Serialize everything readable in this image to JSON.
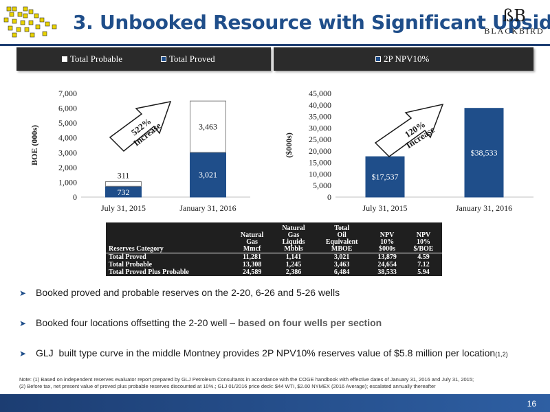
{
  "header": {
    "title": "3. Unbooked Resource with Significant Upside",
    "brand_mark": "ßB",
    "brand_name": "BLACKBIRD"
  },
  "legend_left": [
    "Total Probable",
    "Total Proved"
  ],
  "legend_right": [
    "2P NPV10%"
  ],
  "chart_data": [
    {
      "type": "bar",
      "stacked": true,
      "title": "",
      "ylabel": "BOE (000s)",
      "xlabel": "",
      "categories": [
        "July 31, 2015",
        "January 31, 2016"
      ],
      "series": [
        {
          "name": "Total Proved",
          "values": [
            732,
            3021
          ],
          "color": "#1f4e8a"
        },
        {
          "name": "Total Probable",
          "values": [
            311,
            3463
          ],
          "color": "#ffffff"
        }
      ],
      "data_labels": [
        {
          "proved": "732",
          "probable": "311"
        },
        {
          "proved": "3,021",
          "probable": "3,463"
        }
      ],
      "ylim": [
        0,
        7000
      ],
      "yticks": [
        "0",
        "1,000",
        "2,000",
        "3,000",
        "4,000",
        "5,000",
        "6,000",
        "7,000"
      ],
      "ytick_values": [
        0,
        1000,
        2000,
        3000,
        4000,
        5000,
        6000,
        7000
      ],
      "annotation": [
        "522%",
        "Increase"
      ]
    },
    {
      "type": "bar",
      "title": "",
      "ylabel": "($000s)",
      "xlabel": "",
      "categories": [
        "July 31, 2015",
        "January 31, 2016"
      ],
      "series": [
        {
          "name": "2P NPV10%",
          "values": [
            17537,
            38533
          ],
          "color": "#1f4e8a"
        }
      ],
      "data_labels": [
        "$17,537",
        "$38,533"
      ],
      "ylim": [
        0,
        45000
      ],
      "yticks": [
        "0",
        "5,000",
        "10,000",
        "15,000",
        "20,000",
        "25,000",
        "30,000",
        "35,000",
        "40,000",
        "45,000"
      ],
      "ytick_values": [
        0,
        5000,
        10000,
        15000,
        20000,
        25000,
        30000,
        35000,
        40000,
        45000
      ],
      "annotation": [
        "120%",
        "Increase"
      ]
    }
  ],
  "table": {
    "headers": [
      [
        "Reserves Category"
      ],
      [
        "Natural",
        "Gas",
        "Mmcf"
      ],
      [
        "Natural",
        "Gas",
        "Liquids",
        "Mbbls"
      ],
      [
        "Total",
        "Oil",
        "Equivalent",
        "MBOE"
      ],
      [
        "NPV",
        "10%",
        "$000s"
      ],
      [
        "NPV",
        "10%",
        "$/BOE"
      ]
    ],
    "rows": [
      [
        "Total Proved",
        "11,281",
        "1,141",
        "3,021",
        "13,879",
        "4.59"
      ],
      [
        "Total Probable",
        "13,308",
        "1,245",
        "3,463",
        "24,654",
        "7.12"
      ],
      [
        "Total Proved Plus Probable",
        "24,589",
        "2,386",
        "6,484",
        "38,533",
        "5.94"
      ]
    ]
  },
  "bullets": {
    "b1": "Booked proved and probable reserves on the 2-20, 6-26 and 5-26 wells",
    "b2_pre": "Booked four locations offsetting the 2-20 well – ",
    "b2_emph": "based on four wells per section",
    "b3": "GLJ  built type curve in the middle Montney provides 2P NPV10% reserves value of $5.8 million per location",
    "b3_sup": "(1,2)"
  },
  "note": {
    "line1": "Note: (1) Based on independent reserves evaluator report prepared by GLJ Petroleum Consultants in accordance with the COGE handbook with effective dates of January 31, 2016 and July 31, 2015;",
    "line2": "(2) Before tax, net present value of proved plus probable reserves discounted at 10%.; GLJ 01/2016 price deck: $44 WTI, $2.60 NYMEX (2016 Average); escalated annually thereafter"
  },
  "page_number": "16"
}
